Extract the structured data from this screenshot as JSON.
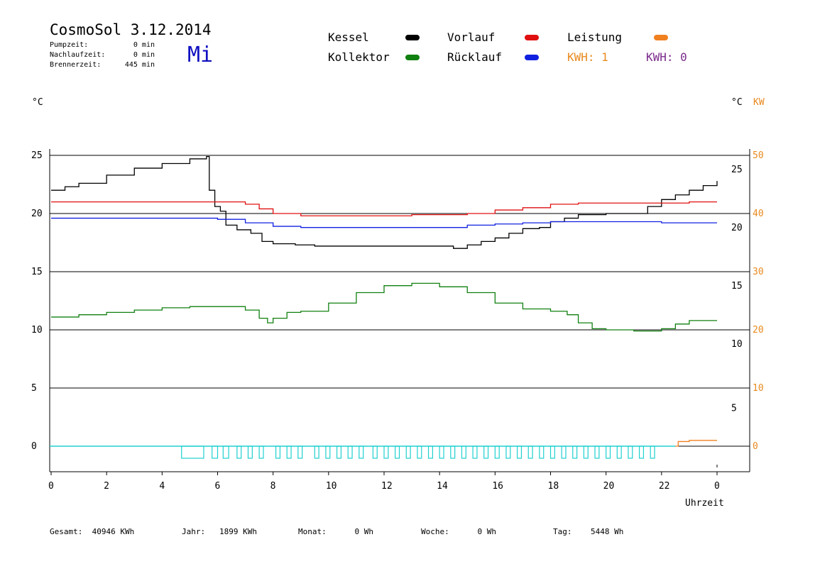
{
  "header": {
    "title": "CosmoSol 3.12.2014",
    "day": "Mi",
    "stats": [
      {
        "label": "Pumpzeit:",
        "value": "0 min"
      },
      {
        "label": "Nachlaufzeit:",
        "value": "0 min"
      },
      {
        "label": "Brennerzeit:",
        "value": "445 min"
      }
    ]
  },
  "legend": {
    "kessel": "Kessel",
    "vorlauf": "Vorlauf",
    "leistung": "Leistung",
    "kollektor": "Kollektor",
    "ruecklauf": "Rücklauf",
    "kwh_1": "KWH: 1",
    "kwh_2": "KWH: 0"
  },
  "colors": {
    "kessel": "#000000",
    "vorlauf": "#e01010",
    "leistung": "#f08020",
    "kollektor": "#108010",
    "ruecklauf": "#1020e0",
    "pump": "#20d0d0",
    "kwh_1": "#e88a20",
    "kwh_2": "#7a2a8a",
    "right_axis_kw": "#e88a20"
  },
  "axes": {
    "left_unit": "°C",
    "right_unit_c": "°C",
    "right_unit_kw": "KW",
    "x_label": "Uhrzeit"
  },
  "footer": {
    "gesamt_label": "Gesamt:",
    "gesamt_value": "40946 KWh",
    "jahr_label": "Jahr:",
    "jahr_value": "1899 KWh",
    "monat_label": "Monat:",
    "monat_value": "0 Wh",
    "woche_label": "Woche:",
    "woche_value": "0 Wh",
    "tag_label": "Tag:",
    "tag_value": "5448 Wh"
  },
  "chart_data": {
    "type": "line",
    "xlabel": "Uhrzeit",
    "ylabel": "°C",
    "xlim": [
      0,
      24
    ],
    "ylim": [
      -1,
      26
    ],
    "grid": true,
    "x_ticks": [
      "0",
      "2",
      "4",
      "6",
      "8",
      "10",
      "12",
      "14",
      "16",
      "18",
      "20",
      "22",
      "0"
    ],
    "y_ticks_left": [
      "25",
      "20",
      "15",
      "10",
      "5",
      "0"
    ],
    "y_ticks_right_c": [
      "25",
      "20",
      "15",
      "10",
      "5"
    ],
    "y_ticks_right_kw": [
      "50",
      "40",
      "30",
      "20",
      "10",
      "0"
    ],
    "y_ticks_right_kw_positions": [
      25,
      20,
      15,
      10,
      5,
      0
    ],
    "y_ticks_right_c_positions": [
      24.5,
      19.5,
      14.5,
      9.5,
      4.0
    ],
    "y_ticks_left_positions": [
      25,
      20,
      15,
      10,
      5,
      0
    ],
    "series": [
      {
        "name": "Kessel",
        "color": "#000000",
        "x": [
          0,
          0.5,
          1,
          2,
          3,
          4,
          5,
          5.6,
          5.7,
          5.9,
          6.1,
          6.3,
          6.7,
          7.2,
          7.6,
          8.0,
          8.8,
          9.5,
          11,
          12,
          13,
          14,
          14.5,
          15.0,
          15.5,
          16.0,
          16.5,
          17.0,
          17.6,
          18.0,
          18.5,
          19.0,
          20.0,
          20.7,
          21.5,
          22.0,
          22.5,
          23.0,
          23.5,
          24.0
        ],
        "values": [
          22.0,
          22.3,
          22.6,
          23.3,
          23.9,
          24.3,
          24.7,
          24.9,
          22.0,
          20.6,
          20.2,
          19.0,
          18.6,
          18.3,
          17.6,
          17.4,
          17.3,
          17.2,
          17.2,
          17.2,
          17.2,
          17.2,
          17.0,
          17.3,
          17.6,
          17.9,
          18.3,
          18.7,
          18.8,
          19.3,
          19.6,
          19.9,
          20.0,
          20.0,
          20.6,
          21.2,
          21.6,
          22.0,
          22.4,
          22.8
        ]
      },
      {
        "name": "Vorlauf",
        "color": "#e01010",
        "x": [
          0,
          2,
          4,
          5.6,
          6.5,
          7.0,
          7.5,
          8.0,
          9.0,
          10,
          11,
          12,
          13,
          14,
          15,
          16,
          17,
          18,
          19,
          20,
          21,
          22,
          23,
          24
        ],
        "values": [
          21.0,
          21.0,
          21.0,
          21.0,
          21.0,
          20.8,
          20.4,
          20.0,
          19.8,
          19.8,
          19.8,
          19.8,
          19.9,
          19.9,
          20.0,
          20.3,
          20.5,
          20.8,
          20.9,
          20.9,
          20.9,
          20.9,
          21.0,
          21.0
        ]
      },
      {
        "name": "Rücklauf",
        "color": "#1020e0",
        "x": [
          0,
          2,
          4,
          6,
          7,
          8,
          9,
          10,
          11,
          12,
          13,
          14,
          15,
          16,
          17,
          18,
          19,
          20,
          21,
          22,
          23,
          24
        ],
        "values": [
          19.6,
          19.6,
          19.6,
          19.5,
          19.2,
          18.9,
          18.8,
          18.8,
          18.8,
          18.8,
          18.8,
          18.8,
          19.0,
          19.1,
          19.2,
          19.3,
          19.3,
          19.3,
          19.3,
          19.2,
          19.2,
          19.2
        ]
      },
      {
        "name": "Kollektor",
        "color": "#108010",
        "x": [
          0,
          1,
          2,
          3,
          4,
          5,
          6,
          6.6,
          7.0,
          7.5,
          7.8,
          8.0,
          8.5,
          9.0,
          10,
          11,
          12,
          13,
          14,
          15,
          16,
          17,
          18,
          18.6,
          19.0,
          19.5,
          20,
          21,
          22,
          22.5,
          23,
          23.5,
          24
        ],
        "values": [
          11.1,
          11.3,
          11.5,
          11.7,
          11.9,
          12.0,
          12.0,
          12.0,
          11.7,
          11.0,
          10.6,
          11.0,
          11.5,
          11.6,
          12.3,
          13.2,
          13.8,
          14.0,
          13.7,
          13.2,
          12.3,
          11.8,
          11.6,
          11.3,
          10.6,
          10.1,
          10.0,
          9.9,
          10.1,
          10.5,
          10.8,
          10.8,
          10.8
        ]
      },
      {
        "name": "Leistung",
        "color": "#f08020",
        "x": [
          22.5,
          22.6,
          23.0,
          23.5,
          24.0
        ],
        "values": [
          0,
          0.4,
          0.5,
          0.5,
          0.5
        ]
      }
    ],
    "pump_pulses": [
      {
        "start": 4.7,
        "end": 5.5
      },
      {
        "start": 5.8,
        "end": 6.0
      },
      {
        "start": 6.2,
        "end": 6.4
      },
      {
        "start": 6.7,
        "end": 6.85
      },
      {
        "start": 7.1,
        "end": 7.25
      },
      {
        "start": 7.5,
        "end": 7.65
      },
      {
        "start": 8.1,
        "end": 8.25
      },
      {
        "start": 8.5,
        "end": 8.65
      },
      {
        "start": 8.9,
        "end": 9.05
      },
      {
        "start": 9.5,
        "end": 9.65
      },
      {
        "start": 9.9,
        "end": 10.05
      },
      {
        "start": 10.3,
        "end": 10.45
      },
      {
        "start": 10.7,
        "end": 10.85
      },
      {
        "start": 11.1,
        "end": 11.25
      },
      {
        "start": 11.6,
        "end": 11.75
      },
      {
        "start": 12.0,
        "end": 12.15
      },
      {
        "start": 12.4,
        "end": 12.55
      },
      {
        "start": 12.8,
        "end": 12.95
      },
      {
        "start": 13.2,
        "end": 13.35
      },
      {
        "start": 13.6,
        "end": 13.75
      },
      {
        "start": 14.0,
        "end": 14.15
      },
      {
        "start": 14.4,
        "end": 14.55
      },
      {
        "start": 14.8,
        "end": 14.95
      },
      {
        "start": 15.2,
        "end": 15.35
      },
      {
        "start": 15.6,
        "end": 15.75
      },
      {
        "start": 16.0,
        "end": 16.15
      },
      {
        "start": 16.4,
        "end": 16.55
      },
      {
        "start": 16.8,
        "end": 16.95
      },
      {
        "start": 17.2,
        "end": 17.35
      },
      {
        "start": 17.6,
        "end": 17.75
      },
      {
        "start": 18.0,
        "end": 18.15
      },
      {
        "start": 18.4,
        "end": 18.55
      },
      {
        "start": 18.8,
        "end": 18.95
      },
      {
        "start": 19.2,
        "end": 19.35
      },
      {
        "start": 19.6,
        "end": 19.75
      },
      {
        "start": 20.0,
        "end": 20.15
      },
      {
        "start": 20.4,
        "end": 20.55
      },
      {
        "start": 20.8,
        "end": 20.95
      },
      {
        "start": 21.2,
        "end": 21.35
      },
      {
        "start": 21.6,
        "end": 21.75
      }
    ]
  }
}
